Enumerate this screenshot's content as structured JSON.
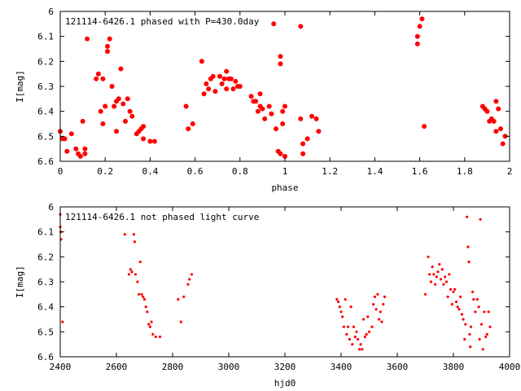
{
  "colors": {
    "points": "#ff0000",
    "axes": "#000000",
    "background": "#ffffff"
  },
  "chart_data": [
    {
      "type": "scatter",
      "title": "121114-6426.1 phased with P=430.0day",
      "xlabel": "phase",
      "ylabel": "I[mag]",
      "xlim": [
        0,
        2
      ],
      "ylim": [
        6.6,
        6
      ],
      "x_ticks": [
        "0",
        "0.2",
        "0.4",
        "0.6",
        "0.8",
        "1",
        "1.2",
        "1.4",
        "1.6",
        "1.8",
        "2"
      ],
      "y_ticks": [
        "6",
        "6.1",
        "6.2",
        "6.3",
        "6.4",
        "6.5",
        "6.6"
      ],
      "grid": false,
      "marker": "dot-large",
      "points": [
        [
          0.0,
          6.48
        ],
        [
          0.01,
          6.51
        ],
        [
          0.02,
          6.51
        ],
        [
          0.03,
          6.56
        ],
        [
          0.05,
          6.49
        ],
        [
          0.07,
          6.55
        ],
        [
          0.08,
          6.57
        ],
        [
          0.09,
          6.58
        ],
        [
          0.1,
          6.44
        ],
        [
          0.11,
          6.55
        ],
        [
          0.11,
          6.57
        ],
        [
          0.12,
          6.11
        ],
        [
          0.16,
          6.27
        ],
        [
          0.17,
          6.25
        ],
        [
          0.18,
          6.4
        ],
        [
          0.19,
          6.45
        ],
        [
          0.19,
          6.27
        ],
        [
          0.2,
          6.38
        ],
        [
          0.21,
          6.16
        ],
        [
          0.21,
          6.14
        ],
        [
          0.22,
          6.11
        ],
        [
          0.23,
          6.3
        ],
        [
          0.24,
          6.38
        ],
        [
          0.25,
          6.36
        ],
        [
          0.25,
          6.48
        ],
        [
          0.26,
          6.35
        ],
        [
          0.27,
          6.23
        ],
        [
          0.28,
          6.37
        ],
        [
          0.29,
          6.44
        ],
        [
          0.3,
          6.35
        ],
        [
          0.31,
          6.4
        ],
        [
          0.32,
          6.42
        ],
        [
          0.34,
          6.49
        ],
        [
          0.35,
          6.48
        ],
        [
          0.36,
          6.47
        ],
        [
          0.37,
          6.46
        ],
        [
          0.37,
          6.51
        ],
        [
          0.4,
          6.52
        ],
        [
          0.42,
          6.52
        ],
        [
          0.56,
          6.38
        ],
        [
          0.57,
          6.47
        ],
        [
          0.59,
          6.45
        ],
        [
          0.63,
          6.2
        ],
        [
          0.64,
          6.33
        ],
        [
          0.65,
          6.29
        ],
        [
          0.66,
          6.31
        ],
        [
          0.67,
          6.27
        ],
        [
          0.68,
          6.26
        ],
        [
          0.69,
          6.32
        ],
        [
          0.71,
          6.26
        ],
        [
          0.72,
          6.29
        ],
        [
          0.73,
          6.27
        ],
        [
          0.74,
          6.24
        ],
        [
          0.74,
          6.31
        ],
        [
          0.75,
          6.27
        ],
        [
          0.76,
          6.27
        ],
        [
          0.77,
          6.31
        ],
        [
          0.78,
          6.28
        ],
        [
          0.79,
          6.3
        ],
        [
          0.8,
          6.3
        ],
        [
          0.85,
          6.34
        ],
        [
          0.86,
          6.36
        ],
        [
          0.87,
          6.36
        ],
        [
          0.88,
          6.4
        ],
        [
          0.89,
          6.33
        ],
        [
          0.89,
          6.38
        ],
        [
          0.9,
          6.39
        ],
        [
          0.91,
          6.43
        ],
        [
          0.93,
          6.38
        ],
        [
          0.94,
          6.41
        ],
        [
          0.95,
          6.05
        ],
        [
          0.96,
          6.47
        ],
        [
          0.97,
          6.56
        ],
        [
          0.98,
          6.57
        ],
        [
          0.98,
          6.18
        ],
        [
          0.98,
          6.21
        ],
        [
          0.99,
          6.4
        ],
        [
          0.99,
          6.45
        ],
        [
          1.0,
          6.38
        ],
        [
          1.0,
          6.58
        ],
        [
          1.07,
          6.06
        ],
        [
          1.07,
          6.43
        ],
        [
          1.08,
          6.53
        ],
        [
          1.08,
          6.57
        ],
        [
          1.1,
          6.51
        ],
        [
          1.12,
          6.42
        ],
        [
          1.14,
          6.43
        ],
        [
          1.15,
          6.48
        ],
        [
          1.59,
          6.13
        ],
        [
          1.59,
          6.1
        ],
        [
          1.6,
          6.06
        ],
        [
          1.61,
          6.03
        ],
        [
          1.62,
          6.46
        ],
        [
          1.88,
          6.38
        ],
        [
          1.89,
          6.39
        ],
        [
          1.9,
          6.4
        ],
        [
          1.91,
          6.44
        ],
        [
          1.92,
          6.43
        ],
        [
          1.93,
          6.44
        ],
        [
          1.94,
          6.36
        ],
        [
          1.94,
          6.48
        ],
        [
          1.95,
          6.39
        ],
        [
          1.96,
          6.47
        ],
        [
          1.97,
          6.53
        ],
        [
          1.98,
          6.5
        ]
      ]
    },
    {
      "type": "scatter",
      "title": "121114-6426.1 not phased light curve",
      "xlabel": "hjd0",
      "ylabel": "I[mag]",
      "xlim": [
        2400,
        4000
      ],
      "ylim": [
        6.6,
        6
      ],
      "x_ticks": [
        "2400",
        "2600",
        "2800",
        "3000",
        "3200",
        "3400",
        "3600",
        "3800",
        "4000"
      ],
      "y_ticks": [
        "6",
        "6.1",
        "6.2",
        "6.3",
        "6.4",
        "6.5",
        "6.6"
      ],
      "grid": false,
      "marker": "dot-small",
      "points": [
        [
          2400,
          6.03
        ],
        [
          2400,
          6.08
        ],
        [
          2402,
          6.1
        ],
        [
          2403,
          6.13
        ],
        [
          2408,
          6.46
        ],
        [
          2630,
          6.11
        ],
        [
          2645,
          6.27
        ],
        [
          2650,
          6.25
        ],
        [
          2655,
          6.26
        ],
        [
          2662,
          6.11
        ],
        [
          2665,
          6.14
        ],
        [
          2668,
          6.27
        ],
        [
          2675,
          6.3
        ],
        [
          2680,
          6.35
        ],
        [
          2685,
          6.22
        ],
        [
          2690,
          6.35
        ],
        [
          2695,
          6.36
        ],
        [
          2700,
          6.37
        ],
        [
          2705,
          6.4
        ],
        [
          2710,
          6.42
        ],
        [
          2715,
          6.47
        ],
        [
          2720,
          6.48
        ],
        [
          2725,
          6.46
        ],
        [
          2730,
          6.51
        ],
        [
          2740,
          6.52
        ],
        [
          2755,
          6.52
        ],
        [
          2820,
          6.37
        ],
        [
          2830,
          6.46
        ],
        [
          2840,
          6.36
        ],
        [
          2855,
          6.31
        ],
        [
          2860,
          6.29
        ],
        [
          2868,
          6.27
        ],
        [
          3385,
          6.37
        ],
        [
          3390,
          6.38
        ],
        [
          3395,
          6.4
        ],
        [
          3400,
          6.42
        ],
        [
          3405,
          6.44
        ],
        [
          3410,
          6.48
        ],
        [
          3415,
          6.37
        ],
        [
          3420,
          6.51
        ],
        [
          3425,
          6.48
        ],
        [
          3430,
          6.53
        ],
        [
          3435,
          6.4
        ],
        [
          3440,
          6.55
        ],
        [
          3445,
          6.48
        ],
        [
          3450,
          6.52
        ],
        [
          3455,
          6.5
        ],
        [
          3460,
          6.53
        ],
        [
          3465,
          6.57
        ],
        [
          3470,
          6.55
        ],
        [
          3475,
          6.57
        ],
        [
          3480,
          6.45
        ],
        [
          3485,
          6.52
        ],
        [
          3490,
          6.51
        ],
        [
          3495,
          6.44
        ],
        [
          3500,
          6.5
        ],
        [
          3510,
          6.48
        ],
        [
          3515,
          6.39
        ],
        [
          3520,
          6.36
        ],
        [
          3525,
          6.41
        ],
        [
          3530,
          6.35
        ],
        [
          3535,
          6.45
        ],
        [
          3540,
          6.42
        ],
        [
          3545,
          6.46
        ],
        [
          3550,
          6.39
        ],
        [
          3555,
          6.36
        ],
        [
          3700,
          6.35
        ],
        [
          3710,
          6.2
        ],
        [
          3715,
          6.27
        ],
        [
          3720,
          6.3
        ],
        [
          3725,
          6.24
        ],
        [
          3730,
          6.27
        ],
        [
          3735,
          6.31
        ],
        [
          3740,
          6.28
        ],
        [
          3745,
          6.26
        ],
        [
          3750,
          6.23
        ],
        [
          3755,
          6.29
        ],
        [
          3760,
          6.25
        ],
        [
          3765,
          6.31
        ],
        [
          3770,
          6.28
        ],
        [
          3775,
          6.3
        ],
        [
          3780,
          6.36
        ],
        [
          3785,
          6.27
        ],
        [
          3790,
          6.33
        ],
        [
          3795,
          6.39
        ],
        [
          3800,
          6.34
        ],
        [
          3805,
          6.33
        ],
        [
          3810,
          6.38
        ],
        [
          3815,
          6.4
        ],
        [
          3820,
          6.41
        ],
        [
          3825,
          6.36
        ],
        [
          3830,
          6.43
        ],
        [
          3835,
          6.45
        ],
        [
          3840,
          6.53
        ],
        [
          3843,
          6.47
        ],
        [
          3848,
          6.04
        ],
        [
          3852,
          6.16
        ],
        [
          3855,
          6.22
        ],
        [
          3858,
          6.51
        ],
        [
          3860,
          6.56
        ],
        [
          3862,
          6.48
        ],
        [
          3868,
          6.34
        ],
        [
          3872,
          6.37
        ],
        [
          3878,
          6.42
        ],
        [
          3885,
          6.37
        ],
        [
          3890,
          6.4
        ],
        [
          3893,
          6.53
        ],
        [
          3896,
          6.05
        ],
        [
          3900,
          6.47
        ],
        [
          3905,
          6.57
        ],
        [
          3910,
          6.42
        ],
        [
          3915,
          6.52
        ],
        [
          3920,
          6.51
        ],
        [
          3925,
          6.42
        ],
        [
          3930,
          6.48
        ]
      ]
    }
  ]
}
